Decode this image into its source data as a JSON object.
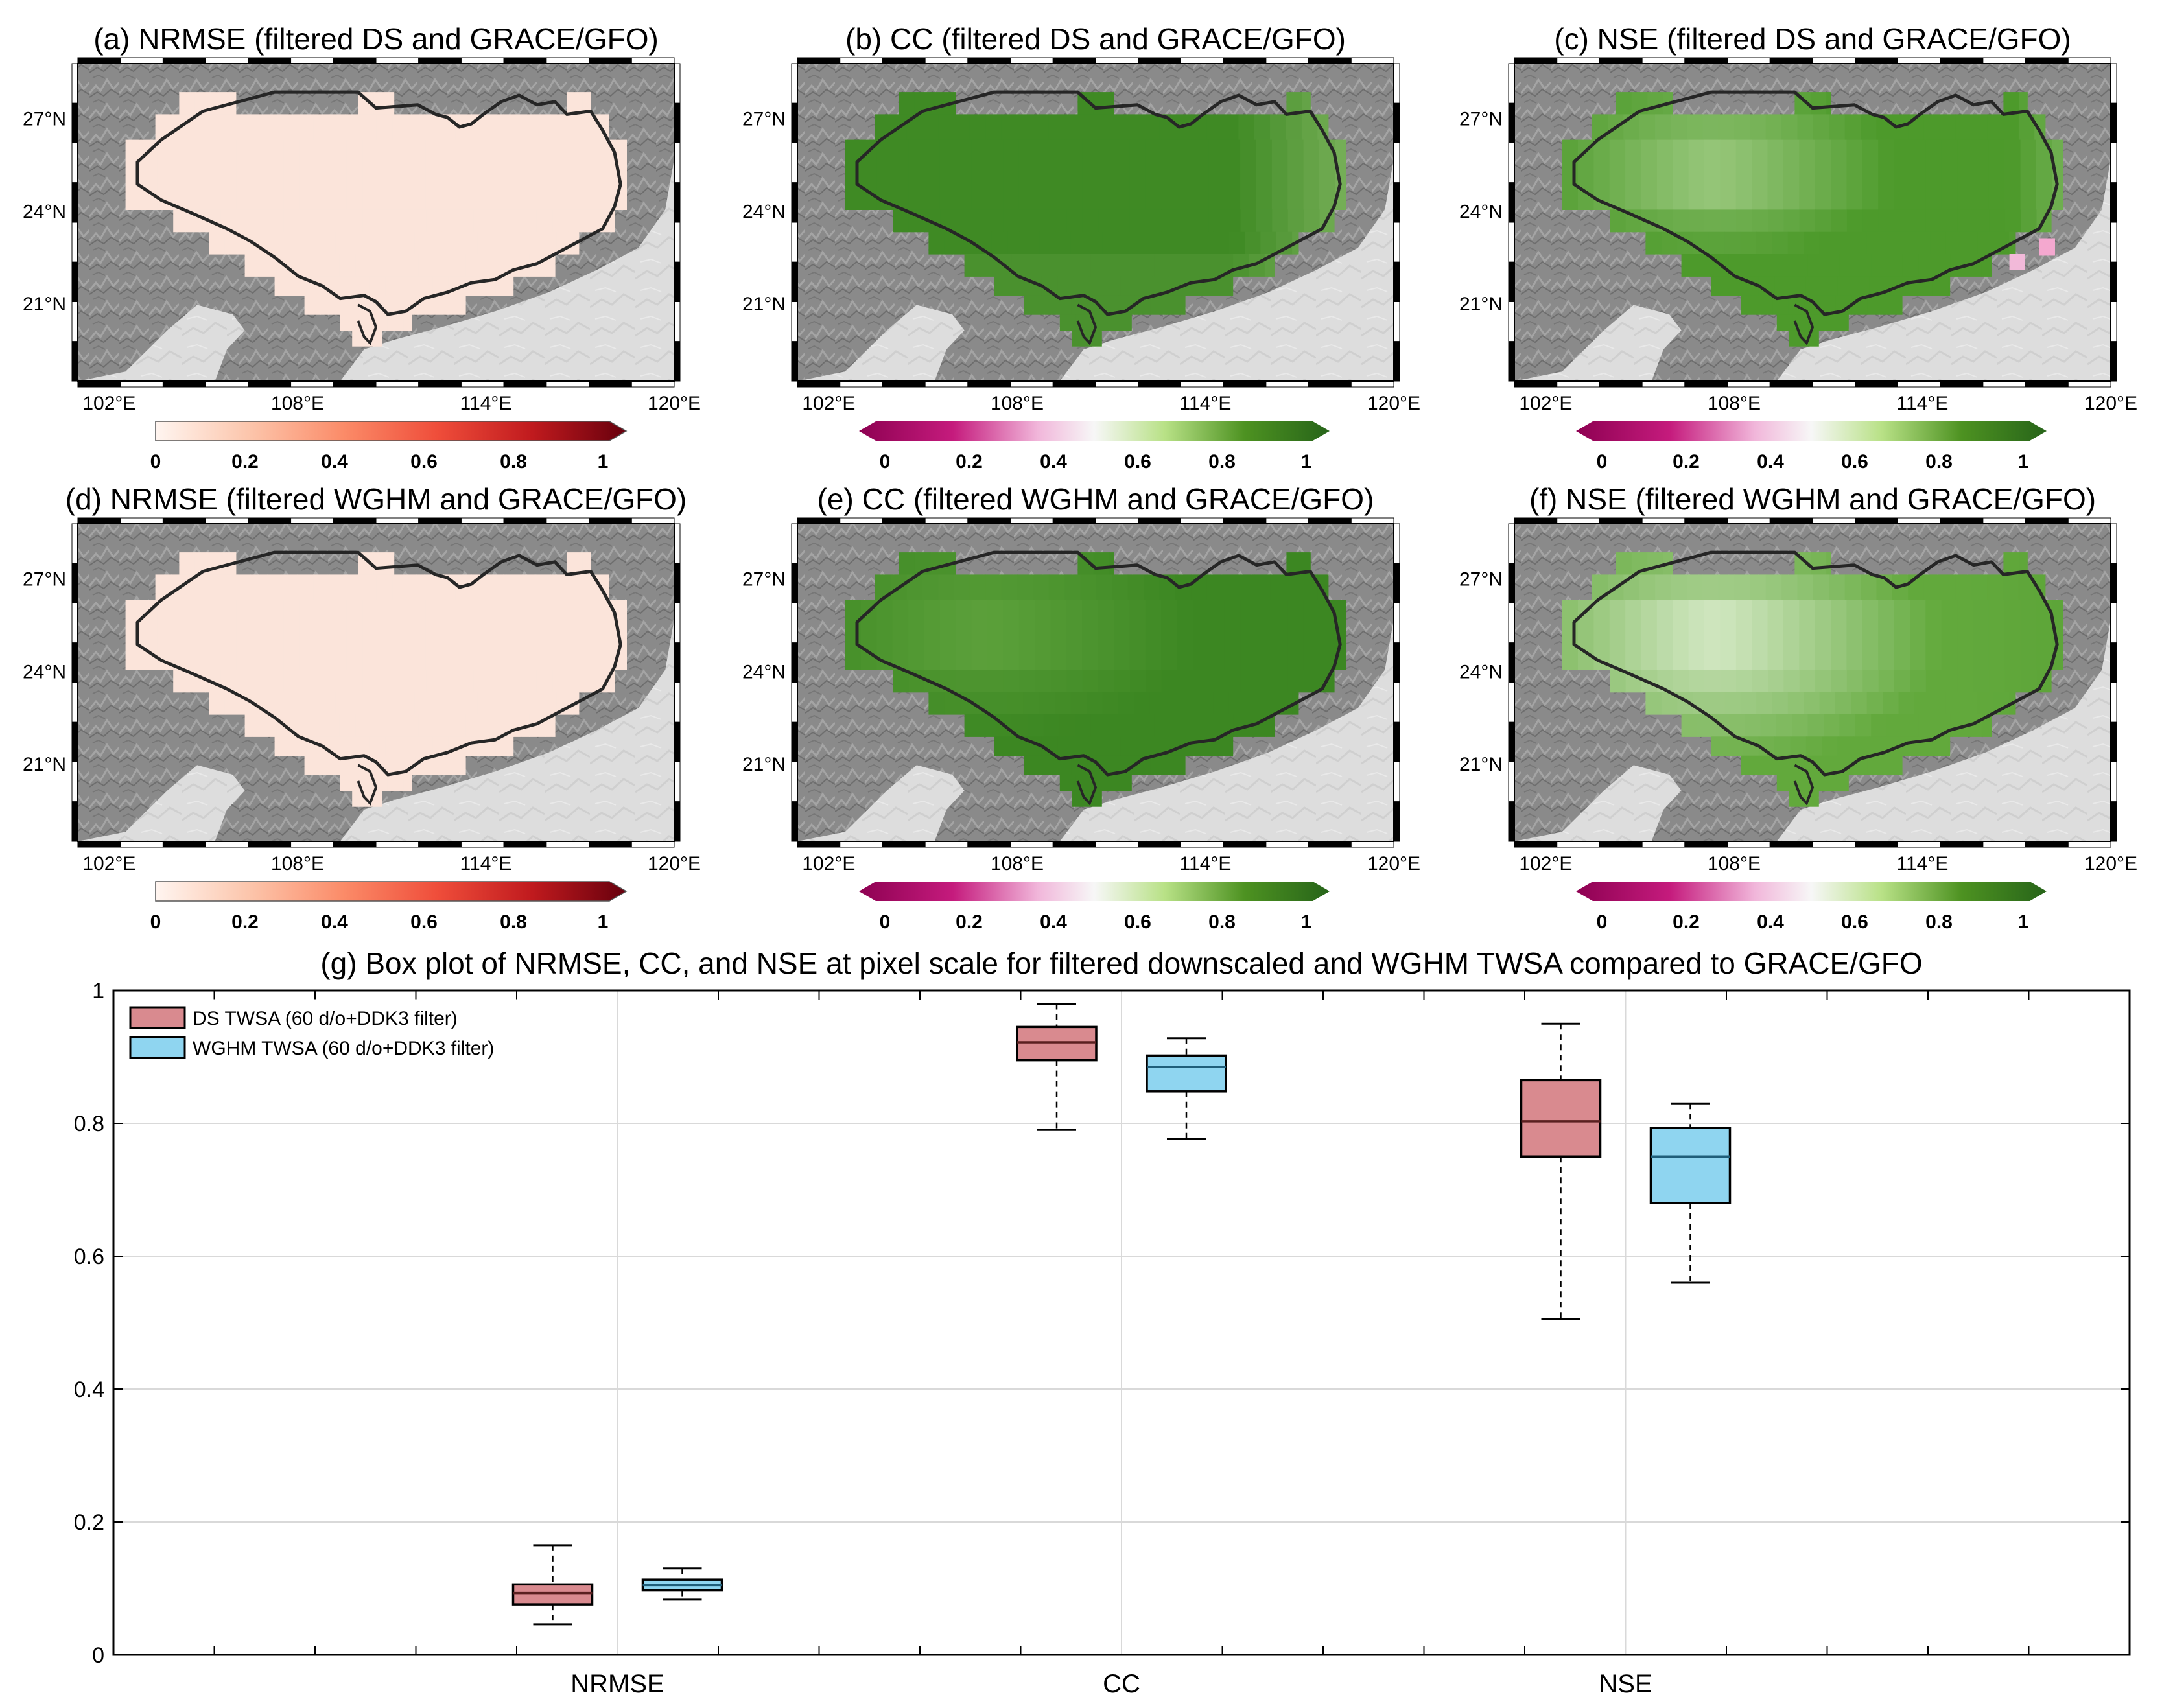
{
  "maps": [
    {
      "id": "a",
      "title": "(a) NRMSE (filtered DS and GRACE/GFO)",
      "palette": "reds",
      "base": "#fbe4da",
      "cb_ticks": [
        "0",
        "0.2",
        "0.4",
        "0.6",
        "0.8",
        "1"
      ],
      "pattern": "flat"
    },
    {
      "id": "b",
      "title": "(b) CC (filtered DS and GRACE/GFO)",
      "palette": "pinkgreen",
      "base": "#4c9a2a",
      "cb_ticks": [
        "0",
        "0.2",
        "0.4",
        "0.6",
        "0.8",
        "1"
      ],
      "pattern": "cc_ds"
    },
    {
      "id": "c",
      "title": "(c) NSE (filtered DS and GRACE/GFO)",
      "palette": "pinkgreen",
      "base": "#7dc257",
      "cb_ticks": [
        "0",
        "0.2",
        "0.4",
        "0.6",
        "0.8",
        "1"
      ],
      "pattern": "nse_ds"
    },
    {
      "id": "d",
      "title": "(d) NRMSE (filtered WGHM and GRACE/GFO)",
      "palette": "reds",
      "base": "#fbe4da",
      "cb_ticks": [
        "0",
        "0.2",
        "0.4",
        "0.6",
        "0.8",
        "1"
      ],
      "pattern": "flat"
    },
    {
      "id": "e",
      "title": "(e) CC (filtered WGHM and GRACE/GFO)",
      "palette": "pinkgreen",
      "base": "#4f9c2c",
      "cb_ticks": [
        "0",
        "0.2",
        "0.4",
        "0.6",
        "0.8",
        "1"
      ],
      "pattern": "cc_wg"
    },
    {
      "id": "f",
      "title": "(f) NSE (filtered WGHM and GRACE/GFO)",
      "palette": "pinkgreen",
      "base": "#8fca69",
      "cb_ticks": [
        "0",
        "0.2",
        "0.4",
        "0.6",
        "0.8",
        "1"
      ],
      "pattern": "nse_wg"
    }
  ],
  "map_axes": {
    "lat_ticks": [
      "27°N",
      "24°N",
      "21°N"
    ],
    "lon_ticks": [
      "102°E",
      "108°E",
      "114°E",
      "120°E"
    ],
    "lat_values": [
      27,
      24,
      21
    ],
    "lon_values": [
      102,
      108,
      114,
      120
    ],
    "lon_range": [
      101,
      120
    ],
    "lat_range": [
      18.5,
      28.8
    ]
  },
  "colors": {
    "land": "#858585",
    "sea": "#dcdcdc",
    "boundary": "#262626",
    "ds_box": "#d98a8f",
    "wghm_box": "#8fd5f0",
    "grid": "#d9d9d9"
  },
  "chart_data": {
    "type": "box",
    "title": "(g) Box plot of NRMSE, CC, and NSE at pixel scale for filtered downscaled and WGHM TWSA compared to GRACE/GFO",
    "categories": [
      "NRMSE",
      "CC",
      "NSE"
    ],
    "ylim": [
      0,
      1
    ],
    "yticks": [
      "0",
      "0.2",
      "0.4",
      "0.6",
      "0.8",
      "1"
    ],
    "ytick_values": [
      0,
      0.2,
      0.4,
      0.6,
      0.8,
      1
    ],
    "legend_position": "top-left",
    "grid": true,
    "series": [
      {
        "name": "DS TWSA (60 d/o+DDK3 filter)",
        "color": "#d98a8f",
        "stats": [
          {
            "min": 0.046,
            "q1": 0.076,
            "median": 0.093,
            "q3": 0.106,
            "max": 0.165
          },
          {
            "min": 0.79,
            "q1": 0.895,
            "median": 0.922,
            "q3": 0.945,
            "max": 0.98
          },
          {
            "min": 0.505,
            "q1": 0.75,
            "median": 0.803,
            "q3": 0.865,
            "max": 0.95
          }
        ]
      },
      {
        "name": "WGHM TWSA (60 d/o+DDK3 filter)",
        "color": "#8fd5f0",
        "stats": [
          {
            "min": 0.083,
            "q1": 0.097,
            "median": 0.105,
            "q3": 0.113,
            "max": 0.13
          },
          {
            "min": 0.777,
            "q1": 0.848,
            "median": 0.885,
            "q3": 0.902,
            "max": 0.928
          },
          {
            "min": 0.56,
            "q1": 0.68,
            "median": 0.75,
            "q3": 0.793,
            "max": 0.83
          }
        ]
      }
    ]
  }
}
